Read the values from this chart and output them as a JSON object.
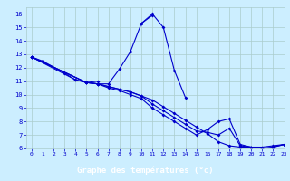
{
  "xlabel": "Graphe des températures (°c)",
  "bg_color": "#cceeff",
  "grid_color": "#aacccc",
  "line_color": "#0000cc",
  "label_bg_color": "#000080",
  "label_text_color": "#ffffff",
  "xlim": [
    -0.5,
    23
  ],
  "ylim": [
    6,
    16.5
  ],
  "xticks": [
    0,
    1,
    2,
    3,
    4,
    5,
    6,
    7,
    8,
    9,
    10,
    11,
    12,
    13,
    14,
    15,
    16,
    17,
    18,
    19,
    20,
    21,
    22,
    23
  ],
  "yticks": [
    6,
    7,
    8,
    9,
    10,
    11,
    12,
    13,
    14,
    15,
    16
  ],
  "series_data": {
    "s1_x": [
      0,
      1,
      3,
      4,
      5,
      6
    ],
    "s1_y": [
      12.8,
      12.5,
      11.6,
      11.1,
      10.9,
      11.0
    ],
    "s2_x": [
      0,
      4,
      5,
      6,
      7,
      8,
      9,
      10,
      11
    ],
    "s2_y": [
      12.8,
      11.1,
      10.9,
      10.8,
      10.8,
      11.9,
      13.2,
      15.3,
      15.9
    ],
    "s3_x": [
      10,
      11,
      12,
      13,
      14
    ],
    "s3_y": [
      15.3,
      16.0,
      15.0,
      11.8,
      9.8
    ],
    "s4_x": [
      0,
      5,
      6,
      7,
      8,
      9,
      10,
      11,
      12,
      13,
      14,
      15,
      16,
      17,
      18,
      19,
      20,
      21,
      22,
      23
    ],
    "s4_y": [
      12.8,
      10.9,
      10.8,
      10.6,
      10.4,
      10.2,
      9.9,
      9.6,
      9.1,
      8.6,
      8.1,
      7.6,
      7.1,
      6.5,
      6.2,
      6.1,
      6.1,
      6.1,
      6.2,
      6.3
    ],
    "s5_x": [
      0,
      5,
      6,
      7,
      8,
      9,
      10,
      11,
      12,
      13,
      14,
      15,
      16,
      17,
      18,
      19,
      20,
      21,
      22,
      23
    ],
    "s5_y": [
      12.8,
      10.9,
      10.8,
      10.6,
      10.4,
      10.2,
      9.9,
      9.3,
      8.8,
      8.3,
      7.8,
      7.3,
      7.2,
      7.0,
      7.5,
      6.2,
      6.1,
      6.0,
      6.1,
      6.3
    ],
    "s6_x": [
      0,
      5,
      6,
      7,
      8,
      9,
      10,
      11,
      12,
      13,
      14,
      15,
      16,
      17,
      18,
      19,
      20,
      21,
      22,
      23
    ],
    "s6_y": [
      12.8,
      10.9,
      10.8,
      10.5,
      10.3,
      10.0,
      9.7,
      9.0,
      8.5,
      8.0,
      7.5,
      7.0,
      7.4,
      8.0,
      8.2,
      6.3,
      6.1,
      6.0,
      6.1,
      6.3
    ]
  }
}
